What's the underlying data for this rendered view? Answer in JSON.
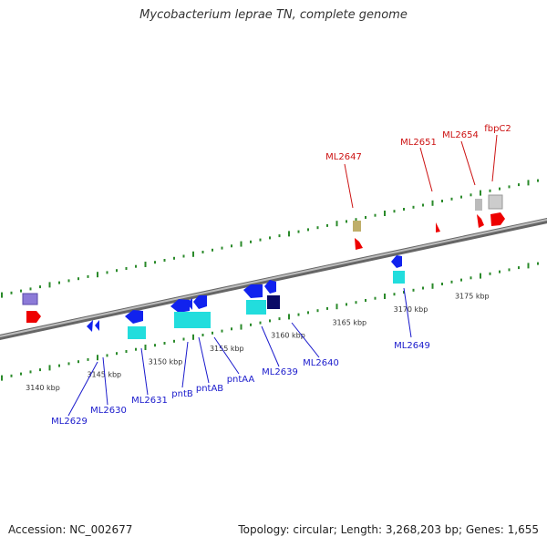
{
  "title": "Mycobacterium leprae TN, complete genome",
  "footer": {
    "accession": "Accession: NC_002677",
    "summary": "Topology: circular; Length: 3,268,203 bp; Genes: 1,655"
  },
  "colors": {
    "backbone": "#8a8a8a",
    "tick": "#2a8a2a",
    "forward_label": "#cc1111",
    "reverse_label": "#1a1acc"
  },
  "kbp_labels": [
    {
      "kbp": 3140,
      "text": "3140 kbp"
    },
    {
      "kbp": 3145,
      "text": "3145 kbp"
    },
    {
      "kbp": 3150,
      "text": "3150 kbp"
    },
    {
      "kbp": 3155,
      "text": "3155 kbp"
    },
    {
      "kbp": 3160,
      "text": "3160 kbp"
    },
    {
      "kbp": 3165,
      "text": "3165 kbp"
    },
    {
      "kbp": 3170,
      "text": "3170 kbp"
    },
    {
      "kbp": 3175,
      "text": "3175 kbp"
    }
  ],
  "forward_labels": [
    "ML2647",
    "ML2651",
    "ML2654",
    "fbpC2"
  ],
  "reverse_labels": [
    "ML2629",
    "ML2630",
    "ML2631",
    "pntB",
    "pntAB",
    "pntAA",
    "ML2639",
    "ML2640",
    "ML2649"
  ]
}
